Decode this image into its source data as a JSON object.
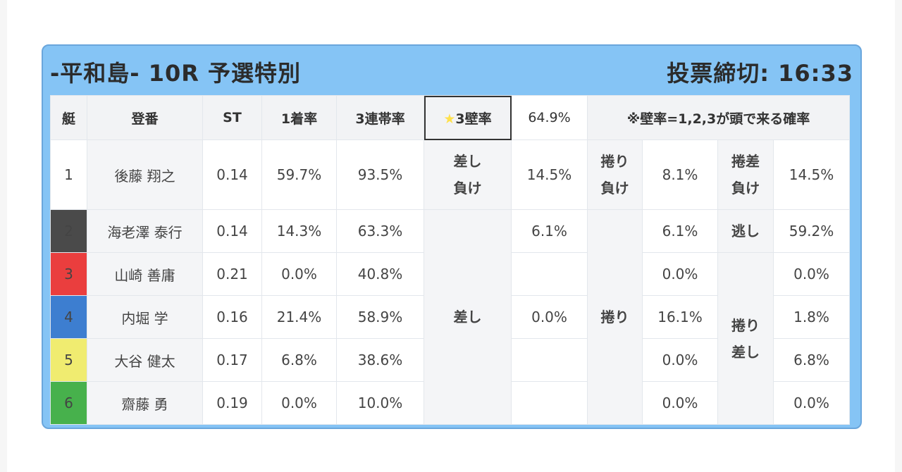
{
  "header": {
    "title": "-平和島- 10R 予選特別",
    "deadline": "投票締切: 16:33"
  },
  "columns": {
    "boat": "艇",
    "register": "登番",
    "st": "ST",
    "first_rate": "1着率",
    "top3_rate": "3連帯率",
    "star_icon": "★",
    "wall_label": "3壁率",
    "wall_rate": "64.9%",
    "note": "※壁率=1,2,3が頭で来る確率"
  },
  "racers": [
    {
      "boat": "1",
      "name": "後藤 翔之",
      "st": "0.14",
      "first": "59.7%",
      "top3": "93.5%"
    },
    {
      "boat": "2",
      "name": "海老澤 泰行",
      "st": "0.14",
      "first": "14.3%",
      "top3": "63.3%"
    },
    {
      "boat": "3",
      "name": "山崎 善庸",
      "st": "0.21",
      "first": "0.0%",
      "top3": "40.8%"
    },
    {
      "boat": "4",
      "name": "内堀 学",
      "st": "0.16",
      "first": "21.4%",
      "top3": "58.9%"
    },
    {
      "boat": "5",
      "name": "大谷 健太",
      "st": "0.17",
      "first": "6.8%",
      "top3": "38.6%"
    },
    {
      "boat": "6",
      "name": "齋藤 勇",
      "st": "0.19",
      "first": "0.0%",
      "top3": "10.0%"
    }
  ],
  "patterns": {
    "sashi_make": "差し\n負け",
    "sashi": "差し",
    "makuri_make": "捲り\n負け",
    "makuri": "捲り",
    "makurisashi_make": "捲差\n負け",
    "nige": "逃し",
    "makurisashi": "捲り\n差し"
  },
  "rates": {
    "r1": {
      "sashi_make": "14.5%",
      "makuri_make": "8.1%",
      "makurisashi_make": "14.5%"
    },
    "r2": {
      "sashi": "6.1%",
      "makuri": "6.1%",
      "nige": "59.2%"
    },
    "r3": {
      "makuri": "0.0%",
      "makurisashi": "0.0%"
    },
    "r4": {
      "sashi": "0.0%",
      "makuri": "16.1%",
      "makurisashi": "1.8%"
    },
    "r5": {
      "makuri": "0.0%",
      "makurisashi": "6.8%"
    },
    "r6": {
      "makuri": "0.0%",
      "makurisashi": "0.0%"
    }
  }
}
